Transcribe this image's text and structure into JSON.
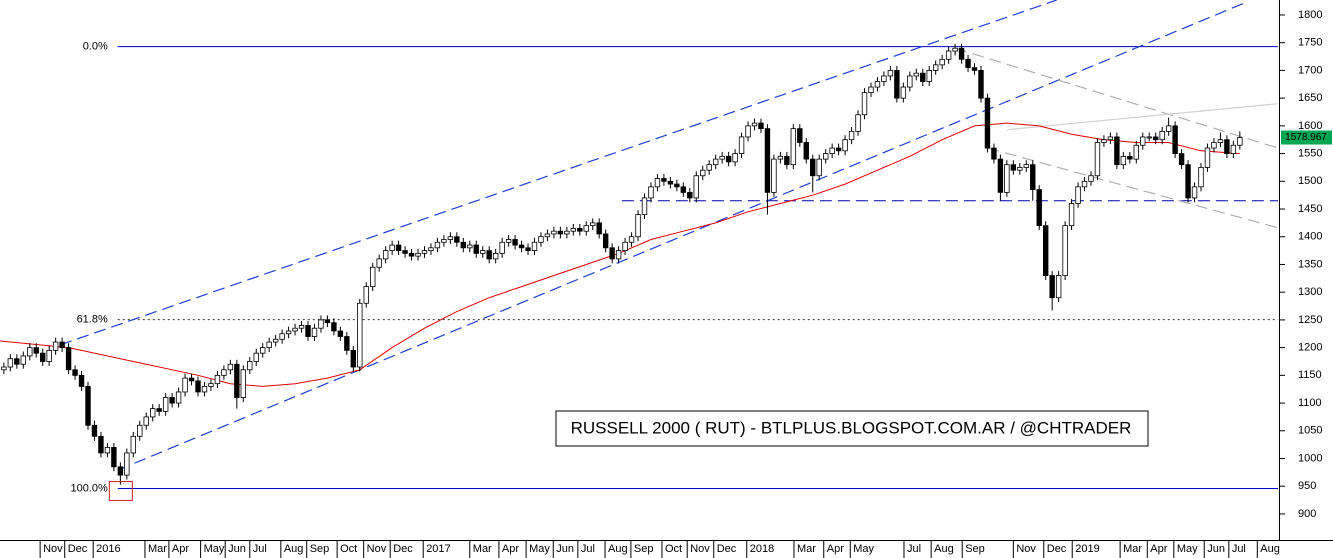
{
  "chart_data": {
    "type": "candlestick",
    "title": "RUSSELL 2000 ( RUT) - BTLPLUS.BLOGSPOT.COM.AR / @CHTRADER",
    "up_color": "#ffffff",
    "down_color": "#000000",
    "xlim": [
      -0.6,
      196.9
    ],
    "ylim": [
      853,
      1827
    ],
    "yticks": [
      900,
      950,
      1000,
      1050,
      1100,
      1150,
      1200,
      1250,
      1300,
      1350,
      1400,
      1450,
      1500,
      1550,
      1600,
      1650,
      1700,
      1750,
      1800
    ],
    "xticks": [
      {
        "value": 5.6,
        "label": "Nov"
      },
      {
        "value": 9.4,
        "label": "Dec"
      },
      {
        "value": 13.8,
        "label": "2016"
      },
      {
        "value": 21.8,
        "label": "Mar"
      },
      {
        "value": 25.5,
        "label": "Apr"
      },
      {
        "value": 30.4,
        "label": "May"
      },
      {
        "value": 34.2,
        "label": "Jun"
      },
      {
        "value": 38,
        "label": "Jul"
      },
      {
        "value": 42.8,
        "label": "Aug"
      },
      {
        "value": 46.8,
        "label": "Sep"
      },
      {
        "value": 51.5,
        "label": "Oct"
      },
      {
        "value": 55.6,
        "label": "Nov"
      },
      {
        "value": 59.7,
        "label": "Dec"
      },
      {
        "value": 64.8,
        "label": "2017"
      },
      {
        "value": 72,
        "label": "Mar"
      },
      {
        "value": 76.5,
        "label": "Apr"
      },
      {
        "value": 80.7,
        "label": "May"
      },
      {
        "value": 84.9,
        "label": "Jun"
      },
      {
        "value": 88.7,
        "label": "Jul"
      },
      {
        "value": 92.9,
        "label": "Aug"
      },
      {
        "value": 96.9,
        "label": "Sep"
      },
      {
        "value": 101.7,
        "label": "Oct"
      },
      {
        "value": 105.6,
        "label": "Nov"
      },
      {
        "value": 109.7,
        "label": "Dec"
      },
      {
        "value": 114.8,
        "label": "2018"
      },
      {
        "value": 122.1,
        "label": "Mar"
      },
      {
        "value": 126.7,
        "label": "Apr"
      },
      {
        "value": 130.8,
        "label": "May"
      },
      {
        "value": 139.1,
        "label": "Jul"
      },
      {
        "value": 143.3,
        "label": "Aug"
      },
      {
        "value": 148.1,
        "label": "Sep"
      },
      {
        "value": 156,
        "label": "Nov"
      },
      {
        "value": 160.7,
        "label": "Dec"
      },
      {
        "value": 165.1,
        "label": "2019"
      },
      {
        "value": 172.5,
        "label": "Mar"
      },
      {
        "value": 176.7,
        "label": "Apr"
      },
      {
        "value": 180.8,
        "label": "May"
      },
      {
        "value": 185.5,
        "label": "Jun"
      },
      {
        "value": 189.3,
        "label": "Jul"
      },
      {
        "value": 193.7,
        "label": "Aug"
      }
    ],
    "open": [
      1160,
      1165,
      1180,
      1170,
      1185,
      1200,
      1190,
      1175,
      1195,
      1210,
      1200,
      1160,
      1150,
      1130,
      1060,
      1040,
      1010,
      1020,
      985,
      970,
      1010,
      1040,
      1060,
      1075,
      1090,
      1085,
      1110,
      1100,
      1120,
      1145,
      1140,
      1120,
      1130,
      1135,
      1150,
      1160,
      1170,
      1110,
      1160,
      1175,
      1190,
      1200,
      1210,
      1215,
      1225,
      1230,
      1235,
      1240,
      1220,
      1235,
      1250,
      1245,
      1230,
      1220,
      1195,
      1165,
      1280,
      1310,
      1345,
      1360,
      1375,
      1385,
      1375,
      1370,
      1365,
      1370,
      1375,
      1380,
      1390,
      1395,
      1400,
      1390,
      1380,
      1385,
      1370,
      1375,
      1360,
      1370,
      1390,
      1395,
      1385,
      1380,
      1375,
      1390,
      1400,
      1405,
      1410,
      1405,
      1410,
      1415,
      1410,
      1420,
      1425,
      1405,
      1380,
      1360,
      1375,
      1390,
      1400,
      1440,
      1470,
      1490,
      1505,
      1500,
      1495,
      1490,
      1480,
      1470,
      1510,
      1520,
      1530,
      1540,
      1545,
      1535,
      1550,
      1580,
      1600,
      1605,
      1595,
      1480,
      1540,
      1545,
      1530,
      1595,
      1570,
      1540,
      1510,
      1540,
      1550,
      1560,
      1555,
      1575,
      1590,
      1620,
      1660,
      1670,
      1680,
      1690,
      1700,
      1650,
      1670,
      1690,
      1695,
      1680,
      1700,
      1710,
      1720,
      1735,
      1740,
      1720,
      1705,
      1700,
      1650,
      1560,
      1540,
      1480,
      1530,
      1520,
      1525,
      1530,
      1485,
      1420,
      1330,
      1290,
      1330,
      1420,
      1460,
      1490,
      1500,
      1510,
      1570,
      1575,
      1580,
      1530,
      1545,
      1540,
      1565,
      1580,
      1580,
      1575,
      1590,
      1600,
      1550,
      1530,
      1470,
      1490,
      1525,
      1560,
      1570,
      1575,
      1550,
      1565
    ],
    "high": [
      1173,
      1188,
      1188,
      1193,
      1208,
      1208,
      1198,
      1203,
      1218,
      1218,
      1208,
      1168,
      1158,
      1138,
      1068,
      1048,
      1028,
      1028,
      993,
      1018,
      1048,
      1068,
      1083,
      1098,
      1098,
      1118,
      1118,
      1128,
      1153,
      1153,
      1148,
      1138,
      1143,
      1158,
      1168,
      1178,
      1178,
      1168,
      1183,
      1198,
      1208,
      1218,
      1223,
      1233,
      1238,
      1243,
      1248,
      1248,
      1243,
      1258,
      1258,
      1253,
      1238,
      1228,
      1203,
      1288,
      1318,
      1353,
      1368,
      1383,
      1393,
      1393,
      1383,
      1378,
      1378,
      1383,
      1388,
      1398,
      1403,
      1408,
      1408,
      1398,
      1393,
      1393,
      1383,
      1383,
      1378,
      1398,
      1403,
      1403,
      1393,
      1388,
      1398,
      1408,
      1413,
      1418,
      1418,
      1418,
      1423,
      1423,
      1428,
      1433,
      1433,
      1413,
      1388,
      1383,
      1398,
      1408,
      1448,
      1478,
      1498,
      1513,
      1513,
      1508,
      1503,
      1498,
      1488,
      1518,
      1528,
      1538,
      1548,
      1553,
      1553,
      1558,
      1588,
      1608,
      1613,
      1613,
      1603,
      1548,
      1553,
      1553,
      1603,
      1603,
      1578,
      1548,
      1548,
      1558,
      1568,
      1568,
      1583,
      1598,
      1628,
      1668,
      1678,
      1688,
      1698,
      1708,
      1708,
      1678,
      1698,
      1703,
      1703,
      1708,
      1718,
      1728,
      1743,
      1748,
      1748,
      1728,
      1713,
      1708,
      1658,
      1568,
      1548,
      1538,
      1538,
      1533,
      1538,
      1538,
      1493,
      1428,
      1338,
      1338,
      1428,
      1468,
      1498,
      1508,
      1518,
      1578,
      1583,
      1588,
      1588,
      1553,
      1553,
      1573,
      1588,
      1588,
      1588,
      1598,
      1615,
      1608,
      1558,
      1538,
      1498,
      1533,
      1568,
      1578,
      1588,
      1583,
      1573,
      1590
    ],
    "low": [
      1152,
      1157,
      1162,
      1162,
      1177,
      1182,
      1167,
      1167,
      1187,
      1192,
      1152,
      1142,
      1122,
      1052,
      1032,
      1002,
      1002,
      977,
      953,
      962,
      1002,
      1032,
      1052,
      1067,
      1077,
      1077,
      1092,
      1092,
      1112,
      1132,
      1112,
      1112,
      1122,
      1127,
      1142,
      1152,
      1090,
      1102,
      1152,
      1167,
      1182,
      1192,
      1202,
      1207,
      1217,
      1222,
      1227,
      1212,
      1212,
      1227,
      1237,
      1222,
      1212,
      1187,
      1157,
      1157,
      1272,
      1302,
      1337,
      1352,
      1367,
      1367,
      1362,
      1357,
      1357,
      1362,
      1367,
      1372,
      1382,
      1387,
      1382,
      1372,
      1372,
      1362,
      1362,
      1352,
      1352,
      1362,
      1382,
      1377,
      1372,
      1367,
      1367,
      1382,
      1392,
      1397,
      1397,
      1397,
      1402,
      1402,
      1402,
      1412,
      1397,
      1372,
      1352,
      1352,
      1367,
      1382,
      1392,
      1432,
      1462,
      1482,
      1492,
      1487,
      1482,
      1472,
      1462,
      1462,
      1502,
      1512,
      1522,
      1532,
      1527,
      1527,
      1542,
      1572,
      1592,
      1587,
      1440,
      1472,
      1532,
      1522,
      1522,
      1562,
      1532,
      1480,
      1502,
      1532,
      1542,
      1547,
      1547,
      1567,
      1582,
      1612,
      1652,
      1662,
      1672,
      1682,
      1642,
      1642,
      1662,
      1682,
      1672,
      1672,
      1692,
      1702,
      1712,
      1727,
      1712,
      1697,
      1692,
      1642,
      1552,
      1532,
      1465,
      1472,
      1512,
      1512,
      1517,
      1465,
      1412,
      1322,
      1267,
      1282,
      1322,
      1412,
      1452,
      1482,
      1492,
      1502,
      1562,
      1567,
      1522,
      1522,
      1532,
      1532,
      1557,
      1572,
      1567,
      1567,
      1582,
      1542,
      1522,
      1462,
      1462,
      1482,
      1517,
      1552,
      1562,
      1542,
      1542,
      1557
    ],
    "close": [
      1165,
      1180,
      1170,
      1185,
      1200,
      1190,
      1175,
      1195,
      1210,
      1200,
      1160,
      1150,
      1130,
      1060,
      1040,
      1010,
      1020,
      985,
      970,
      1010,
      1040,
      1060,
      1075,
      1090,
      1085,
      1110,
      1100,
      1120,
      1145,
      1140,
      1120,
      1130,
      1135,
      1150,
      1160,
      1170,
      1110,
      1160,
      1175,
      1190,
      1200,
      1210,
      1215,
      1225,
      1230,
      1235,
      1240,
      1220,
      1235,
      1250,
      1245,
      1230,
      1220,
      1195,
      1165,
      1280,
      1310,
      1345,
      1360,
      1375,
      1385,
      1375,
      1370,
      1365,
      1370,
      1375,
      1380,
      1390,
      1395,
      1400,
      1390,
      1380,
      1385,
      1370,
      1375,
      1360,
      1370,
      1390,
      1395,
      1385,
      1380,
      1375,
      1390,
      1400,
      1405,
      1410,
      1405,
      1410,
      1415,
      1410,
      1420,
      1425,
      1405,
      1380,
      1360,
      1375,
      1390,
      1400,
      1440,
      1470,
      1490,
      1505,
      1500,
      1495,
      1490,
      1480,
      1470,
      1510,
      1520,
      1530,
      1540,
      1545,
      1535,
      1550,
      1580,
      1600,
      1605,
      1595,
      1480,
      1540,
      1545,
      1530,
      1595,
      1570,
      1540,
      1510,
      1540,
      1550,
      1560,
      1555,
      1575,
      1590,
      1620,
      1660,
      1670,
      1680,
      1690,
      1700,
      1650,
      1670,
      1690,
      1695,
      1680,
      1700,
      1710,
      1720,
      1735,
      1740,
      1720,
      1705,
      1700,
      1650,
      1560,
      1540,
      1480,
      1530,
      1520,
      1525,
      1530,
      1485,
      1420,
      1330,
      1290,
      1330,
      1420,
      1460,
      1490,
      1500,
      1510,
      1570,
      1575,
      1580,
      1530,
      1545,
      1540,
      1565,
      1580,
      1580,
      1575,
      1590,
      1600,
      1550,
      1530,
      1470,
      1490,
      1525,
      1560,
      1570,
      1575,
      1550,
      1565,
      1578.967
    ],
    "last_price_color": "#00a651",
    "moving_average": {
      "color": "#e00000",
      "x": [
        -0.6,
        10,
        20,
        30,
        35,
        40,
        45,
        50,
        55,
        60,
        65,
        70,
        75,
        80,
        85,
        90,
        95,
        100,
        105,
        110,
        115,
        120,
        125,
        130,
        135,
        140,
        145,
        150,
        155,
        160,
        165,
        170,
        175,
        180,
        185,
        191
      ],
      "values": [
        1212,
        1200,
        1175,
        1150,
        1135,
        1130,
        1135,
        1145,
        1160,
        1200,
        1235,
        1265,
        1290,
        1310,
        1330,
        1350,
        1370,
        1395,
        1410,
        1425,
        1445,
        1460,
        1475,
        1495,
        1520,
        1545,
        1575,
        1600,
        1605,
        1600,
        1585,
        1575,
        1570,
        1570,
        1555,
        1550
      ]
    },
    "trendlines": [
      {
        "color": "#1f3fd0",
        "style": "dashed",
        "points": [
          [
            8.7,
            1205
          ],
          [
            162.7,
            1827
          ]
        ]
      },
      {
        "color": "#1f3fd0",
        "style": "dashed",
        "points": [
          [
            17.6,
            979
          ],
          [
            191.8,
            1822
          ]
        ]
      },
      {
        "color": "#b0b0b0",
        "style": "dashed",
        "points": [
          [
            147,
            1740
          ],
          [
            196.9,
            1560
          ]
        ]
      },
      {
        "color": "#b0b0b0",
        "style": "dashed",
        "points": [
          [
            152,
            1560
          ],
          [
            196.9,
            1416
          ]
        ]
      },
      {
        "color": "#d0d0d0",
        "style": "solid",
        "points": [
          [
            155,
            1593
          ],
          [
            196.9,
            1640
          ]
        ]
      }
    ],
    "levels": [
      {
        "value": 1743,
        "label": "0.0%",
        "style": "solid",
        "from": 17.6,
        "color": "#0000cc"
      },
      {
        "value": 1250.5,
        "label": "61.8%",
        "style": "dotted",
        "from": 17.6,
        "color": "#333333"
      },
      {
        "value": 946,
        "label": "100.0%",
        "style": "solid",
        "from": 17.6,
        "color": "#0000cc"
      },
      {
        "value": 1465,
        "style": "dashed",
        "from": 95.5,
        "color": "#0000aa"
      }
    ]
  }
}
